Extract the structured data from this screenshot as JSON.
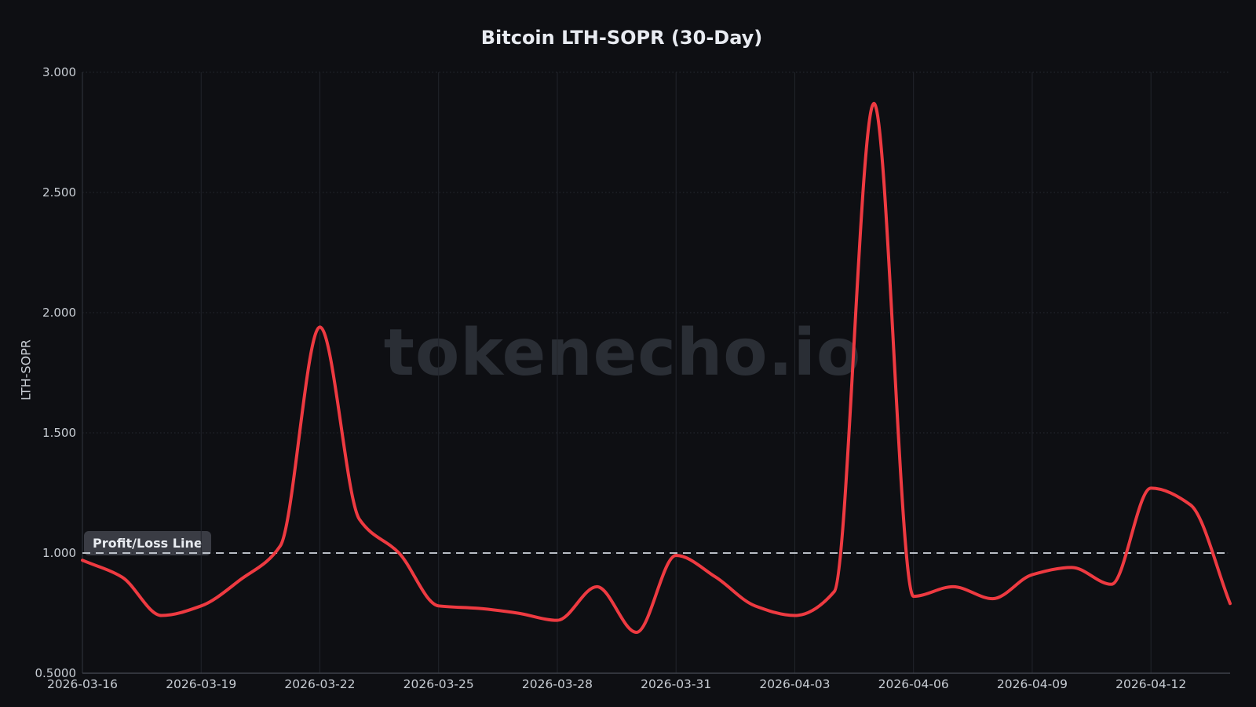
{
  "title": "Bitcoin LTH-SOPR (30-Day)",
  "watermark": "tokenecho.io",
  "colors": {
    "background": "#0e0f13",
    "series_line": "#ee3a41",
    "reference_line": "#ccd1d9",
    "grid_horizontal": "#262932",
    "grid_vertical": "#22252c",
    "axis_line_bottom": "#3e424a",
    "axis_line_left": "#272a31",
    "tick_text": "#c7ccd3",
    "title_text": "#e8ebf1",
    "watermark_text": "#2a2e35",
    "label_chip_bg": "rgba(118,125,137,0.42)"
  },
  "chart_data": {
    "type": "line",
    "title": "Bitcoin LTH-SOPR (30-Day)",
    "xlabel": "",
    "ylabel": "LTH-SOPR",
    "legend": "none",
    "grid": true,
    "smoothing": "spline",
    "ylim": [
      0.5,
      3.0
    ],
    "x": [
      "2026-03-16",
      "2026-03-17",
      "2026-03-18",
      "2026-03-19",
      "2026-03-20",
      "2026-03-21",
      "2026-03-22",
      "2026-03-23",
      "2026-03-24",
      "2026-03-25",
      "2026-03-26",
      "2026-03-27",
      "2026-03-28",
      "2026-03-29",
      "2026-03-30",
      "2026-03-31",
      "2026-04-01",
      "2026-04-02",
      "2026-04-03",
      "2026-04-04",
      "2026-04-05",
      "2026-04-06",
      "2026-04-07",
      "2026-04-08",
      "2026-04-09",
      "2026-04-10",
      "2026-04-11",
      "2026-04-12",
      "2026-04-13",
      "2026-04-14"
    ],
    "series": [
      {
        "name": "LTH-SOPR",
        "values": [
          0.97,
          0.9,
          0.74,
          0.78,
          0.89,
          1.03,
          1.94,
          1.14,
          1.0,
          0.78,
          0.77,
          0.75,
          0.72,
          0.86,
          0.67,
          0.99,
          0.9,
          0.78,
          0.74,
          0.84,
          2.87,
          0.82,
          0.86,
          0.81,
          0.91,
          0.94,
          0.87,
          1.27,
          1.2,
          0.79
        ]
      }
    ],
    "x_tick_labels": [
      "2026-03-16",
      "2026-03-19",
      "2026-03-22",
      "2026-03-25",
      "2026-03-28",
      "2026-03-31",
      "2026-04-03",
      "2026-04-06",
      "2026-04-09",
      "2026-04-12"
    ],
    "x_tick_step_days": 3,
    "y_ticks": [
      {
        "value": 0.5,
        "label": "0.5000"
      },
      {
        "value": 1.0,
        "label": "1.000"
      },
      {
        "value": 1.5,
        "label": "1.500"
      },
      {
        "value": 2.0,
        "label": "2.000"
      },
      {
        "value": 2.5,
        "label": "2.500"
      },
      {
        "value": 3.0,
        "label": "3.000"
      }
    ],
    "reference_line": {
      "value": 1.0,
      "label": "Profit/Loss Line",
      "style": "dashed"
    }
  }
}
